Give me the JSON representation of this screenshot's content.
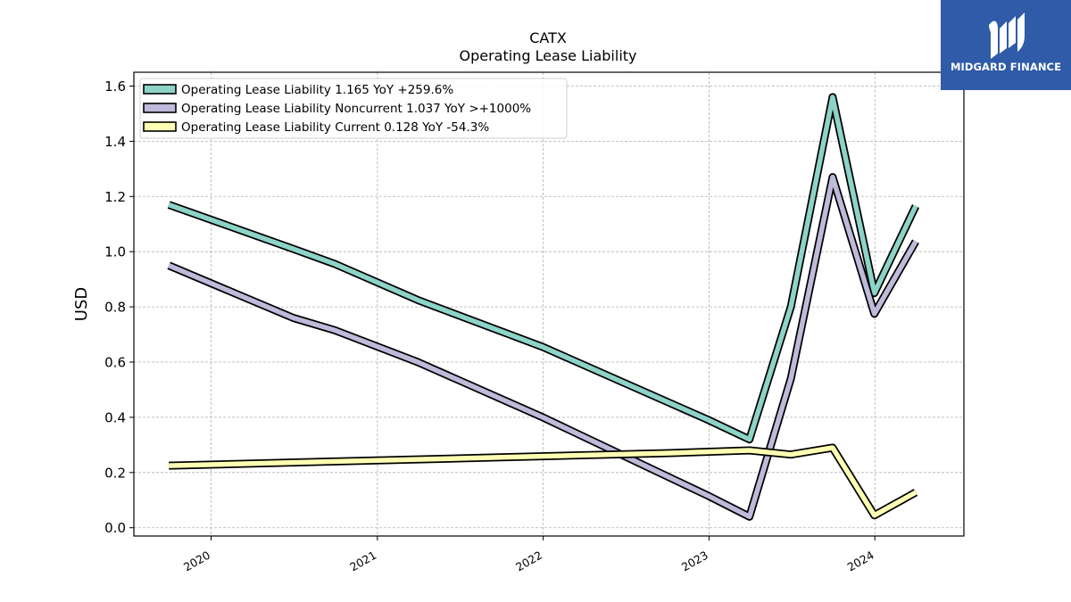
{
  "chart_data": {
    "type": "line",
    "title": "CATX",
    "subtitle": "Operating Lease Liability",
    "ylabel": "USD",
    "xlabel": "",
    "ylim": [
      -0.03,
      1.65
    ],
    "xlim": [
      "2019-07-15",
      "2024-07-15"
    ],
    "yticks": [
      0.0,
      0.2,
      0.4,
      0.6,
      0.8,
      1.0,
      1.2,
      1.4,
      1.6
    ],
    "ytick_labels": [
      "0.0",
      "0.2",
      "0.4",
      "0.6",
      "0.8",
      "1.0",
      "1.2",
      "1.4",
      "1.6"
    ],
    "xticks": [
      "2020-01-01",
      "2021-01-01",
      "2022-01-01",
      "2023-01-01",
      "2024-01-01"
    ],
    "xtick_labels": [
      "2020",
      "2021",
      "2022",
      "2023",
      "2024"
    ],
    "grid": true,
    "legend_position": "top-left",
    "series": [
      {
        "name": "Operating Lease Liability  1.165 YoY +259.6%",
        "color": "#8dd3c7",
        "points": [
          [
            "2019-09-30",
            1.17
          ],
          [
            "2020-06-30",
            1.01
          ],
          [
            "2020-09-30",
            0.955
          ],
          [
            "2021-03-31",
            0.825
          ],
          [
            "2021-12-31",
            0.655
          ],
          [
            "2022-12-31",
            0.39
          ],
          [
            "2023-03-31",
            0.32
          ],
          [
            "2023-06-30",
            0.8
          ],
          [
            "2023-09-30",
            1.56
          ],
          [
            "2023-12-31",
            0.85
          ],
          [
            "2024-03-31",
            1.165
          ]
        ]
      },
      {
        "name": "Operating Lease Liability Noncurrent  1.037 YoY >+1000%",
        "color": "#bebada",
        "points": [
          [
            "2019-09-30",
            0.95
          ],
          [
            "2020-06-30",
            0.76
          ],
          [
            "2020-09-30",
            0.715
          ],
          [
            "2021-03-31",
            0.6
          ],
          [
            "2021-12-31",
            0.4
          ],
          [
            "2022-12-31",
            0.115
          ],
          [
            "2023-03-31",
            0.04
          ],
          [
            "2023-06-30",
            0.54
          ],
          [
            "2023-09-30",
            1.27
          ],
          [
            "2023-12-31",
            0.775
          ],
          [
            "2024-03-31",
            1.037
          ]
        ]
      },
      {
        "name": "Operating Lease Liability Current  0.128 YoY -54.3%",
        "color": "#ffffb3",
        "points": [
          [
            "2019-09-30",
            0.225
          ],
          [
            "2020-09-30",
            0.24
          ],
          [
            "2021-09-30",
            0.255
          ],
          [
            "2022-09-30",
            0.27
          ],
          [
            "2023-03-31",
            0.28
          ],
          [
            "2023-06-30",
            0.265
          ],
          [
            "2023-09-30",
            0.29
          ],
          [
            "2023-12-31",
            0.045
          ],
          [
            "2024-03-31",
            0.128
          ]
        ]
      }
    ]
  },
  "logo": {
    "text": "MIDGARD FINANCE",
    "color": "#2f5ba8"
  }
}
